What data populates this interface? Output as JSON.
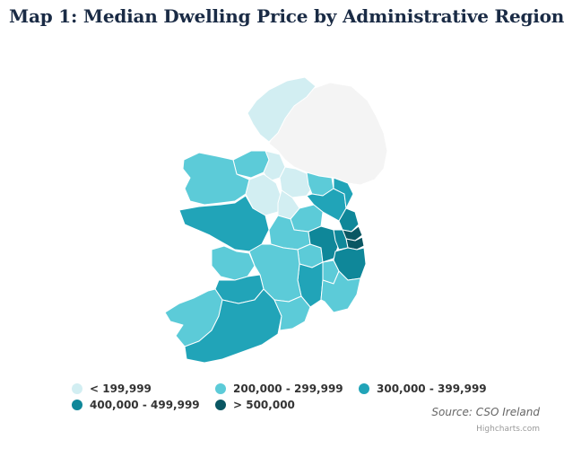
{
  "title": "Map 1: Median Dwelling Price by Administrative Region",
  "source": "Source: CSO Ireland",
  "credits": "Highcharts.com",
  "colors": {
    "no_data": "#f4f4f4",
    "border": "#ffffff",
    "outline": "#d6d6d6"
  },
  "legend": [
    {
      "label": "< 199,999",
      "color": "#d2eef2"
    },
    {
      "label": "200,000 - 299,999",
      "color": "#5ccbd8"
    },
    {
      "label": "300,000 - 399,999",
      "color": "#21a4b8"
    },
    {
      "label": "400,000 - 499,999",
      "color": "#0f8799"
    },
    {
      "label": "> 500,000",
      "color": "#0a5763"
    }
  ]
}
